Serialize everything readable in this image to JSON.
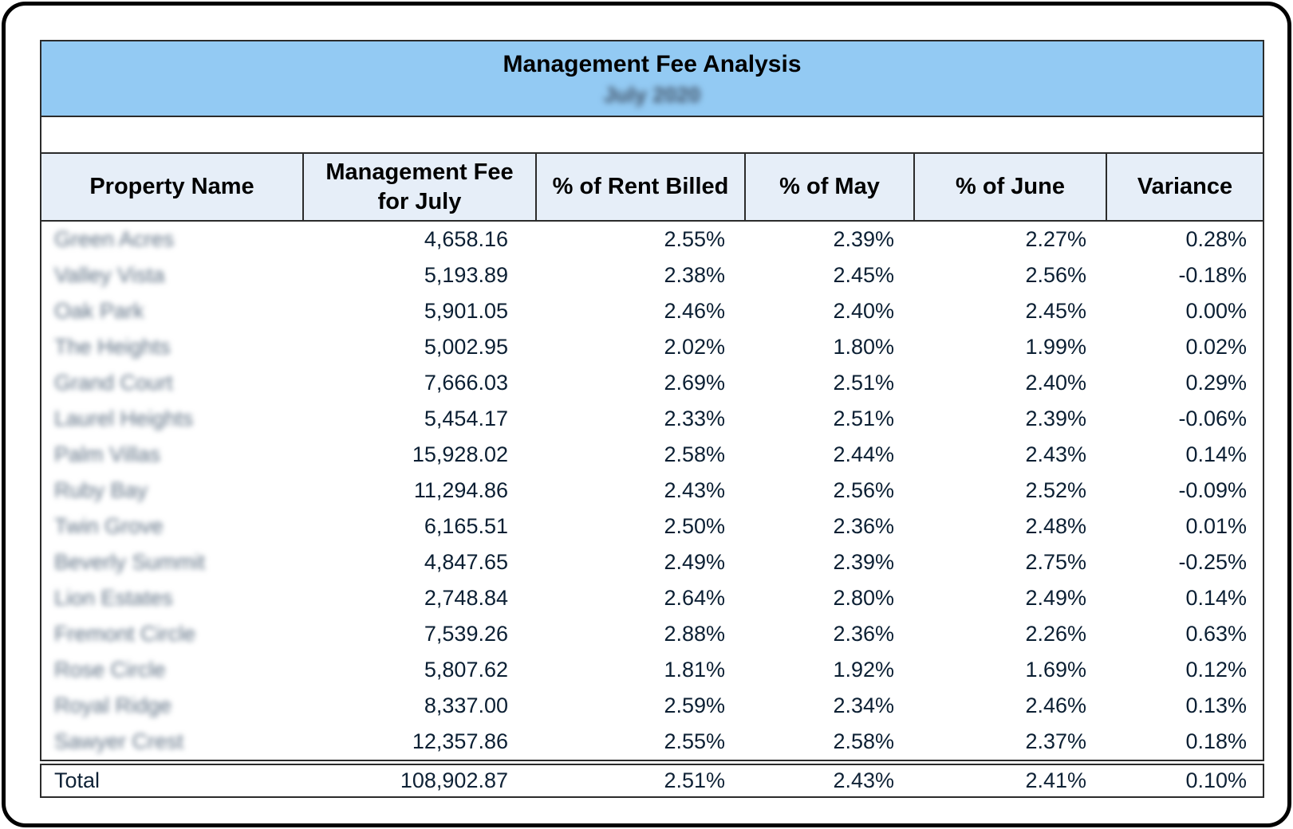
{
  "report": {
    "title": "Management Fee Analysis",
    "subtitle": "July 2020",
    "columns": [
      {
        "label": "Property Name"
      },
      {
        "label": "Management Fee for July"
      },
      {
        "label": "% of Rent Billed"
      },
      {
        "label": "% of May"
      },
      {
        "label": "% of June"
      },
      {
        "label": "Variance"
      }
    ],
    "rows": [
      {
        "name": "Green Acres",
        "fee": "4,658.16",
        "rent_billed": "2.55%",
        "may": "2.39%",
        "june": "2.27%",
        "variance": "0.28%"
      },
      {
        "name": "Valley Vista",
        "fee": "5,193.89",
        "rent_billed": "2.38%",
        "may": "2.45%",
        "june": "2.56%",
        "variance": "-0.18%"
      },
      {
        "name": "Oak Park",
        "fee": "5,901.05",
        "rent_billed": "2.46%",
        "may": "2.40%",
        "june": "2.45%",
        "variance": "0.00%"
      },
      {
        "name": "The Heights",
        "fee": "5,002.95",
        "rent_billed": "2.02%",
        "may": "1.80%",
        "june": "1.99%",
        "variance": "0.02%"
      },
      {
        "name": "Grand Court",
        "fee": "7,666.03",
        "rent_billed": "2.69%",
        "may": "2.51%",
        "june": "2.40%",
        "variance": "0.29%"
      },
      {
        "name": "Laurel Heights",
        "fee": "5,454.17",
        "rent_billed": "2.33%",
        "may": "2.51%",
        "june": "2.39%",
        "variance": "-0.06%"
      },
      {
        "name": "Palm Villas",
        "fee": "15,928.02",
        "rent_billed": "2.58%",
        "may": "2.44%",
        "june": "2.43%",
        "variance": "0.14%"
      },
      {
        "name": "Ruby Bay",
        "fee": "11,294.86",
        "rent_billed": "2.43%",
        "may": "2.56%",
        "june": "2.52%",
        "variance": "-0.09%"
      },
      {
        "name": "Twin Grove",
        "fee": "6,165.51",
        "rent_billed": "2.50%",
        "may": "2.36%",
        "june": "2.48%",
        "variance": "0.01%"
      },
      {
        "name": "Beverly Summit",
        "fee": "4,847.65",
        "rent_billed": "2.49%",
        "may": "2.39%",
        "june": "2.75%",
        "variance": "-0.25%"
      },
      {
        "name": "Lion Estates",
        "fee": "2,748.84",
        "rent_billed": "2.64%",
        "may": "2.80%",
        "june": "2.49%",
        "variance": "0.14%"
      },
      {
        "name": "Fremont Circle",
        "fee": "7,539.26",
        "rent_billed": "2.88%",
        "may": "2.36%",
        "june": "2.26%",
        "variance": "0.63%"
      },
      {
        "name": "Rose Circle",
        "fee": "5,807.62",
        "rent_billed": "1.81%",
        "may": "1.92%",
        "june": "1.69%",
        "variance": "0.12%"
      },
      {
        "name": "Royal Ridge",
        "fee": "8,337.00",
        "rent_billed": "2.59%",
        "may": "2.34%",
        "june": "2.46%",
        "variance": "0.13%"
      },
      {
        "name": "Sawyer Crest",
        "fee": "12,357.86",
        "rent_billed": "2.55%",
        "may": "2.58%",
        "june": "2.37%",
        "variance": "0.18%"
      }
    ],
    "total": {
      "label": "Total",
      "fee": "108,902.87",
      "rent_billed": "2.51%",
      "may": "2.43%",
      "june": "2.41%",
      "variance": "0.10%"
    },
    "colors": {
      "title_bg": "#93CAF3",
      "header_bg": "#E6EEF8",
      "border": "#2b2b2b",
      "text": "#0b1f33"
    }
  }
}
